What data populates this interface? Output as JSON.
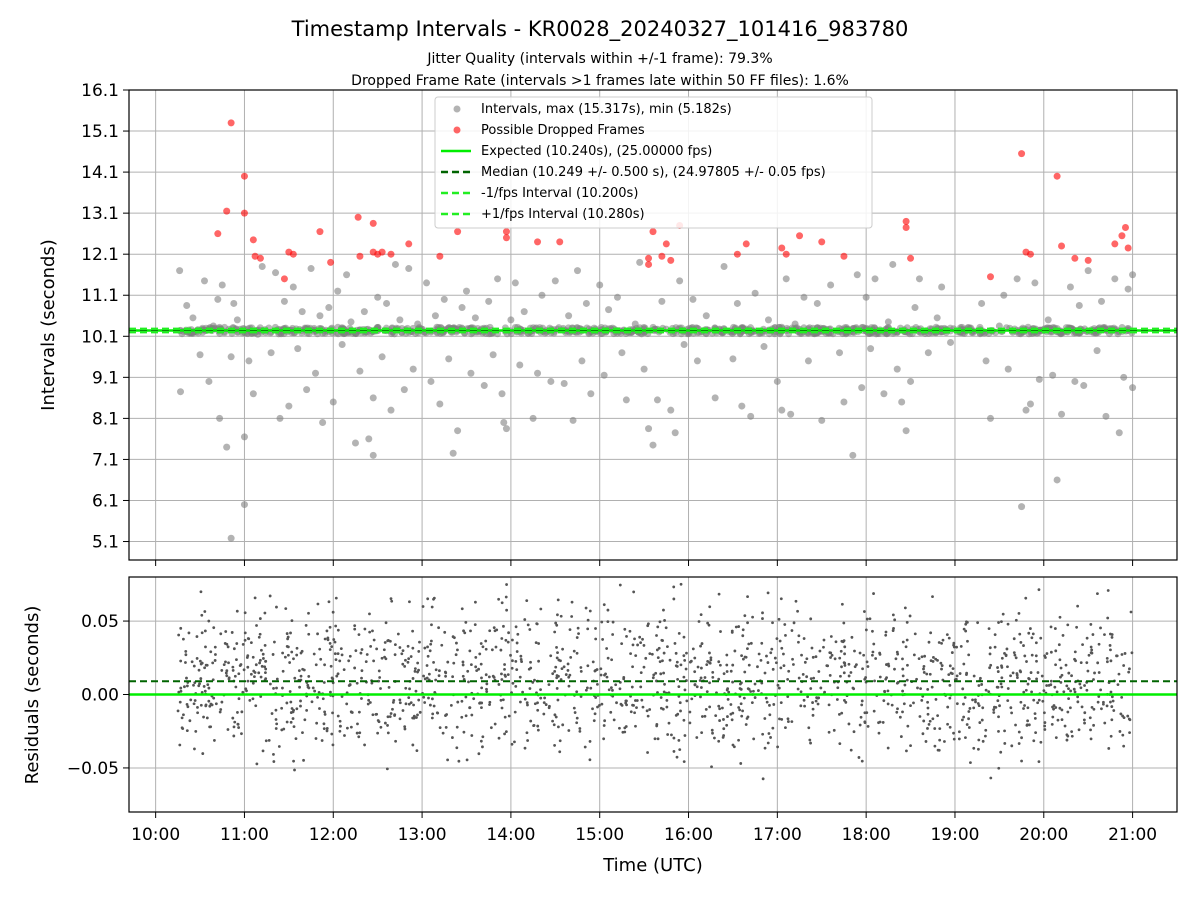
{
  "figure": {
    "title": "Timestamp Intervals - KR0028_20240327_101416_983780",
    "subtitle_1": "Jitter Quality (intervals within +/-1 frame): 79.3%",
    "subtitle_2": "Dropped Frame Rate (intervals >1 frames late within 50 FF files): 1.6%"
  },
  "colors": {
    "intervals": "#808080",
    "dropped": "#ff0000",
    "expected": "#00ee00",
    "median": "#006400",
    "bound": "#22ee22",
    "residuals": "#555555",
    "grid": "#b0b0b0"
  },
  "chart_data": [
    {
      "type": "scatter",
      "panel": "top",
      "xlabel": "",
      "ylabel": "Intervals (seconds)",
      "x_unit": "hours UTC",
      "xlim": [
        9.7,
        21.5
      ],
      "ylim": [
        4.65,
        16.1
      ],
      "yticks": [
        5.1,
        6.1,
        7.1,
        8.1,
        9.1,
        10.1,
        11.1,
        12.1,
        13.1,
        14.1,
        15.1,
        16.1
      ],
      "ytick_labels": [
        "5.1",
        "6.1",
        "7.1",
        "8.1",
        "9.1",
        "10.1",
        "11.1",
        "12.1",
        "13.1",
        "14.1",
        "15.1",
        "16.1"
      ],
      "grid": true,
      "legend_position": "top-center",
      "legend": {
        "intervals": "Intervals, max (15.317s), min (5.182s)",
        "dropped": "Possible Dropped Frames",
        "expected": "Expected (10.240s), (25.00000 fps)",
        "median": "Median (10.249 +/- 0.500 s), (24.97805 +/- 0.05 fps)",
        "lower": "-1/fps Interval (10.200s)",
        "upper": "+1/fps Interval (10.280s)"
      },
      "hlines": {
        "expected": 10.24,
        "median": 10.249,
        "lower": 10.2,
        "upper": 10.28
      },
      "series": [
        {
          "name": "Intervals, max (15.317s), min (5.182s)",
          "note": "most points sit on 10.24 s band; scattered outliers listed",
          "points": [
            [
              10.27,
              11.7
            ],
            [
              10.28,
              8.75
            ],
            [
              10.35,
              10.85
            ],
            [
              10.42,
              10.55
            ],
            [
              10.5,
              9.65
            ],
            [
              10.55,
              11.45
            ],
            [
              10.6,
              9.0
            ],
            [
              10.65,
              10.35
            ],
            [
              10.7,
              11.0
            ],
            [
              10.72,
              8.1
            ],
            [
              10.75,
              11.35
            ],
            [
              10.8,
              7.4
            ],
            [
              10.85,
              9.6
            ],
            [
              10.88,
              10.9
            ],
            [
              10.92,
              10.5
            ],
            [
              11.0,
              6.0
            ],
            [
              11.0,
              7.65
            ],
            [
              11.05,
              9.5
            ],
            [
              11.1,
              8.7
            ],
            [
              11.15,
              10.15
            ],
            [
              11.2,
              11.8
            ],
            [
              11.3,
              9.7
            ],
            [
              11.35,
              11.65
            ],
            [
              11.4,
              8.1
            ],
            [
              11.45,
              10.95
            ],
            [
              11.5,
              8.4
            ],
            [
              11.55,
              11.3
            ],
            [
              11.6,
              9.8
            ],
            [
              11.65,
              10.7
            ],
            [
              11.7,
              8.8
            ],
            [
              11.75,
              11.75
            ],
            [
              11.8,
              9.2
            ],
            [
              11.85,
              10.6
            ],
            [
              11.88,
              8.0
            ],
            [
              11.95,
              10.8
            ],
            [
              12.0,
              8.5
            ],
            [
              12.05,
              11.2
            ],
            [
              12.1,
              9.9
            ],
            [
              12.15,
              11.6
            ],
            [
              12.2,
              10.45
            ],
            [
              12.25,
              7.5
            ],
            [
              12.3,
              9.25
            ],
            [
              12.35,
              10.7
            ],
            [
              12.4,
              7.6
            ],
            [
              12.45,
              8.6
            ],
            [
              12.45,
              7.2
            ],
            [
              12.5,
              11.05
            ],
            [
              12.55,
              9.6
            ],
            [
              12.6,
              10.9
            ],
            [
              12.65,
              8.3
            ],
            [
              12.7,
              11.85
            ],
            [
              12.75,
              10.5
            ],
            [
              12.8,
              8.8
            ],
            [
              12.85,
              11.75
            ],
            [
              12.9,
              9.3
            ],
            [
              12.95,
              10.4
            ],
            [
              13.05,
              11.4
            ],
            [
              13.1,
              9.0
            ],
            [
              13.15,
              10.6
            ],
            [
              13.2,
              8.45
            ],
            [
              13.25,
              11.0
            ],
            [
              13.3,
              9.55
            ],
            [
              13.35,
              7.25
            ],
            [
              13.4,
              7.8
            ],
            [
              13.45,
              10.8
            ],
            [
              13.5,
              11.2
            ],
            [
              13.55,
              9.2
            ],
            [
              13.6,
              10.55
            ],
            [
              13.7,
              8.9
            ],
            [
              13.75,
              10.95
            ],
            [
              13.8,
              9.65
            ],
            [
              13.85,
              11.5
            ],
            [
              13.9,
              8.7
            ],
            [
              13.92,
              8.0
            ],
            [
              13.95,
              7.85
            ],
            [
              14.0,
              10.5
            ],
            [
              14.05,
              11.4
            ],
            [
              14.1,
              9.4
            ],
            [
              14.15,
              10.7
            ],
            [
              14.25,
              8.1
            ],
            [
              14.3,
              9.2
            ],
            [
              14.35,
              11.1
            ],
            [
              14.4,
              10.2
            ],
            [
              14.45,
              9.0
            ],
            [
              14.5,
              11.45
            ],
            [
              14.6,
              8.95
            ],
            [
              14.65,
              10.6
            ],
            [
              14.7,
              8.05
            ],
            [
              14.75,
              11.7
            ],
            [
              14.8,
              9.5
            ],
            [
              14.85,
              10.9
            ],
            [
              14.9,
              8.7
            ],
            [
              15.0,
              11.35
            ],
            [
              15.05,
              9.15
            ],
            [
              15.1,
              10.75
            ],
            [
              15.2,
              11.05
            ],
            [
              15.25,
              9.7
            ],
            [
              15.3,
              8.55
            ],
            [
              15.4,
              10.4
            ],
            [
              15.45,
              11.9
            ],
            [
              15.5,
              9.3
            ],
            [
              15.55,
              7.85
            ],
            [
              15.6,
              7.45
            ],
            [
              15.65,
              8.55
            ],
            [
              15.7,
              10.95
            ],
            [
              15.8,
              8.3
            ],
            [
              15.85,
              7.75
            ],
            [
              15.9,
              11.45
            ],
            [
              15.95,
              9.9
            ],
            [
              16.05,
              11.0
            ],
            [
              16.1,
              9.5
            ],
            [
              16.2,
              10.6
            ],
            [
              16.3,
              8.6
            ],
            [
              16.4,
              11.8
            ],
            [
              16.5,
              9.55
            ],
            [
              16.55,
              10.9
            ],
            [
              16.6,
              8.4
            ],
            [
              16.7,
              8.15
            ],
            [
              16.75,
              11.15
            ],
            [
              16.85,
              9.85
            ],
            [
              16.9,
              10.5
            ],
            [
              17.0,
              9.0
            ],
            [
              17.05,
              8.3
            ],
            [
              17.1,
              11.5
            ],
            [
              17.15,
              8.2
            ],
            [
              17.2,
              10.4
            ],
            [
              17.3,
              11.05
            ],
            [
              17.35,
              9.5
            ],
            [
              17.45,
              10.9
            ],
            [
              17.5,
              8.05
            ],
            [
              17.6,
              11.35
            ],
            [
              17.7,
              9.7
            ],
            [
              17.75,
              8.5
            ],
            [
              17.8,
              10.25
            ],
            [
              17.85,
              7.2
            ],
            [
              17.9,
              11.6
            ],
            [
              17.95,
              8.85
            ],
            [
              18.0,
              11.05
            ],
            [
              18.05,
              9.8
            ],
            [
              18.1,
              11.5
            ],
            [
              18.2,
              8.7
            ],
            [
              18.25,
              10.45
            ],
            [
              18.3,
              11.85
            ],
            [
              18.35,
              9.3
            ],
            [
              18.4,
              8.5
            ],
            [
              18.45,
              7.8
            ],
            [
              18.5,
              9.0
            ],
            [
              18.55,
              10.8
            ],
            [
              18.6,
              11.5
            ],
            [
              18.7,
              9.7
            ],
            [
              18.8,
              10.55
            ],
            [
              18.85,
              11.3
            ],
            [
              18.95,
              9.95
            ],
            [
              19.3,
              10.9
            ],
            [
              19.35,
              9.5
            ],
            [
              19.4,
              8.1
            ],
            [
              19.5,
              10.35
            ],
            [
              19.55,
              11.1
            ],
            [
              19.6,
              9.3
            ],
            [
              19.65,
              10.2
            ],
            [
              19.7,
              11.5
            ],
            [
              19.75,
              5.95
            ],
            [
              19.8,
              8.3
            ],
            [
              19.85,
              8.45
            ],
            [
              19.9,
              11.4
            ],
            [
              19.95,
              9.05
            ],
            [
              20.05,
              10.5
            ],
            [
              20.1,
              9.15
            ],
            [
              20.15,
              6.6
            ],
            [
              20.2,
              8.2
            ],
            [
              20.3,
              11.3
            ],
            [
              20.35,
              9.0
            ],
            [
              20.4,
              10.85
            ],
            [
              20.45,
              8.9
            ],
            [
              20.5,
              11.7
            ],
            [
              20.6,
              9.75
            ],
            [
              20.65,
              10.95
            ],
            [
              20.7,
              8.15
            ],
            [
              20.8,
              11.5
            ],
            [
              20.85,
              7.75
            ],
            [
              20.9,
              9.1
            ],
            [
              20.95,
              11.25
            ],
            [
              21.0,
              8.85
            ],
            [
              21.0,
              11.6
            ],
            [
              10.85,
              5.18
            ]
          ]
        },
        {
          "name": "Possible Dropped Frames",
          "points": [
            [
              10.7,
              12.6
            ],
            [
              10.8,
              13.15
            ],
            [
              10.85,
              15.3
            ],
            [
              11.0,
              14.0
            ],
            [
              11.0,
              13.1
            ],
            [
              11.1,
              12.45
            ],
            [
              11.12,
              12.05
            ],
            [
              11.18,
              12.0
            ],
            [
              11.45,
              11.5
            ],
            [
              11.5,
              12.15
            ],
            [
              11.55,
              12.1
            ],
            [
              11.85,
              12.65
            ],
            [
              11.97,
              11.9
            ],
            [
              12.28,
              13.0
            ],
            [
              12.3,
              12.05
            ],
            [
              12.45,
              12.85
            ],
            [
              12.45,
              12.15
            ],
            [
              12.5,
              12.1
            ],
            [
              12.55,
              12.15
            ],
            [
              12.65,
              12.1
            ],
            [
              12.85,
              12.35
            ],
            [
              13.2,
              12.05
            ],
            [
              13.4,
              12.65
            ],
            [
              13.95,
              12.65
            ],
            [
              13.95,
              12.5
            ],
            [
              14.3,
              12.4
            ],
            [
              14.55,
              12.4
            ],
            [
              15.55,
              12.0
            ],
            [
              15.55,
              11.85
            ],
            [
              15.6,
              12.65
            ],
            [
              15.7,
              12.05
            ],
            [
              15.75,
              12.35
            ],
            [
              15.8,
              11.95
            ],
            [
              15.9,
              12.8
            ],
            [
              16.55,
              12.1
            ],
            [
              16.65,
              12.35
            ],
            [
              17.05,
              12.25
            ],
            [
              17.1,
              12.1
            ],
            [
              17.25,
              12.55
            ],
            [
              17.5,
              12.4
            ],
            [
              17.75,
              12.05
            ],
            [
              18.45,
              12.75
            ],
            [
              18.45,
              12.9
            ],
            [
              18.5,
              12.0
            ],
            [
              19.4,
              11.55
            ],
            [
              19.75,
              14.55
            ],
            [
              19.8,
              12.15
            ],
            [
              19.85,
              12.1
            ],
            [
              20.15,
              14.0
            ],
            [
              20.2,
              12.3
            ],
            [
              20.35,
              12.0
            ],
            [
              20.5,
              11.95
            ],
            [
              20.8,
              12.35
            ],
            [
              20.88,
              12.55
            ],
            [
              20.92,
              12.75
            ],
            [
              20.95,
              12.25
            ]
          ]
        }
      ]
    },
    {
      "type": "scatter",
      "panel": "bottom",
      "xlabel": "Time (UTC)",
      "ylabel": "Residuals (seconds)",
      "xlim": [
        9.7,
        21.5
      ],
      "ylim": [
        -0.08,
        0.08
      ],
      "yticks": [
        -0.05,
        0.0,
        0.05
      ],
      "ytick_labels": [
        "−0.05",
        "0.00",
        "0.05"
      ],
      "xticks": [
        10,
        11,
        12,
        13,
        14,
        15,
        16,
        17,
        18,
        19,
        20,
        21
      ],
      "xtick_labels": [
        "10:00",
        "11:00",
        "12:00",
        "13:00",
        "14:00",
        "15:00",
        "16:00",
        "17:00",
        "18:00",
        "19:00",
        "20:00",
        "21:00"
      ],
      "grid": true,
      "hlines": {
        "expected": 0.0,
        "median": 0.009
      },
      "series": [
        {
          "name": "",
          "x_range": [
            10.25,
            21.0
          ],
          "center": 0.009,
          "spread": 0.08,
          "count": 1700
        }
      ]
    }
  ]
}
